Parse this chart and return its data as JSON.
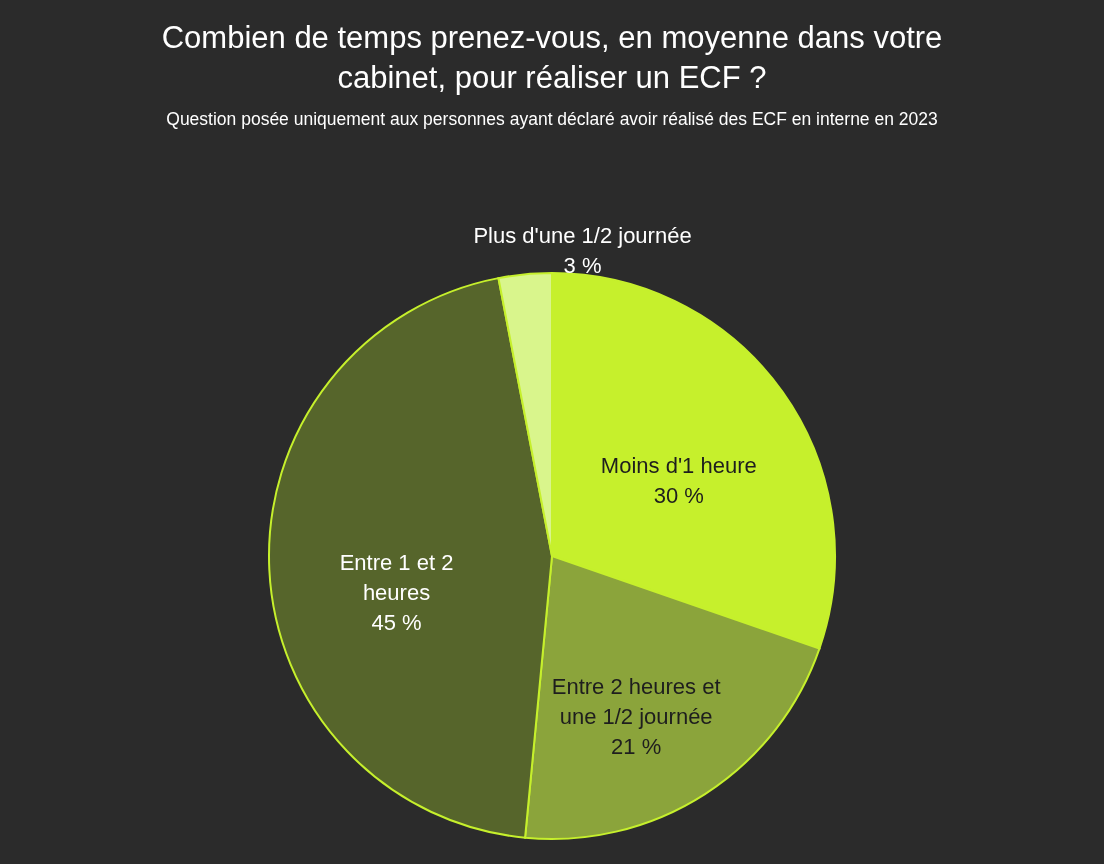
{
  "chart_data": {
    "type": "pie",
    "title": "Combien de temps prenez-vous, en moyenne dans votre cabinet, pour réaliser un ECF ?",
    "subtitle": "Question posée uniquement aux personnes ayant déclaré avoir réalisé des ECF en interne en 2023",
    "categories": [
      "Moins d'1 heure",
      "Entre 2 heures et une 1/2 journée",
      "Entre 1 et 2 heures",
      "Plus d'une 1/2 journée"
    ],
    "values": [
      30,
      21,
      45,
      3
    ],
    "value_labels": [
      "30 %",
      "21 %",
      "45 %",
      "3 %"
    ],
    "colors": [
      "#c6f02c",
      "#8ba43b",
      "#56652b",
      "#d9f58c"
    ],
    "legend": false
  }
}
